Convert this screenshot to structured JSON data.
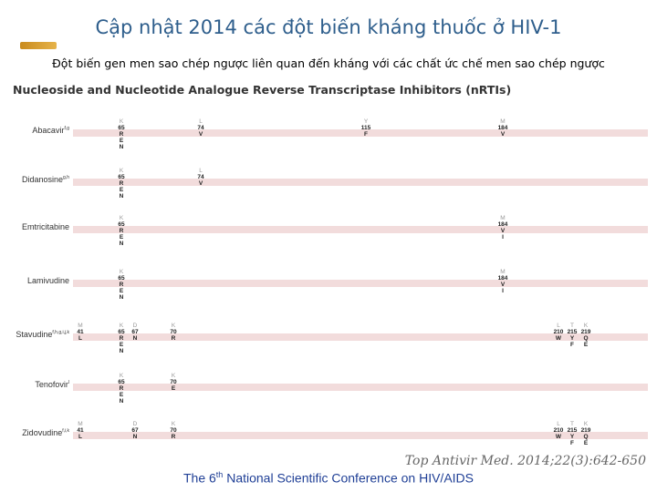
{
  "title": "Cập nhật 2014 các đột biến kháng thuốc ở HIV-1",
  "subtitle": "Đột biến gen men sao chép ngược liên quan đến kháng với các chất ức chế men sao chép ngược",
  "class_header": "Nucleoside and Nucleotide Analogue Reverse Transcriptase Inhibitors (nRTIs)",
  "citation": "Top Antivir Med. 2014;22(3):642-650",
  "footer": {
    "pre": "The 6",
    "sup": "th",
    "post": " National Scientific Conference on HIV/AIDS"
  },
  "colors": {
    "title": "#2e5e8c",
    "bar": "#f2dcdc",
    "footer": "#1f3f96"
  },
  "drugs": [
    {
      "name": "Abacavir",
      "sup": "f,g",
      "mutations": [
        {
          "wt": "K",
          "pos": "65",
          "alt": [
            "R",
            "E",
            "N"
          ]
        },
        {
          "wt": "L",
          "pos": "74",
          "alt": [
            "V"
          ]
        },
        {
          "wt": "Y",
          "pos": "115",
          "alt": [
            "F"
          ]
        },
        {
          "wt": "M",
          "pos": "184",
          "alt": [
            "V"
          ]
        }
      ]
    },
    {
      "name": "Didanosine",
      "sup": "g,h",
      "mutations": [
        {
          "wt": "K",
          "pos": "65",
          "alt": [
            "R",
            "E",
            "N"
          ]
        },
        {
          "wt": "L",
          "pos": "74",
          "alt": [
            "V"
          ]
        }
      ]
    },
    {
      "name": "Emtricitabine",
      "sup": "",
      "mutations": [
        {
          "wt": "K",
          "pos": "65",
          "alt": [
            "R",
            "E",
            "N"
          ]
        },
        {
          "wt": "M",
          "pos": "184",
          "alt": [
            "V",
            "I"
          ]
        }
      ]
    },
    {
      "name": "Lamivudine",
      "sup": "",
      "mutations": [
        {
          "wt": "K",
          "pos": "65",
          "alt": [
            "R",
            "E",
            "N"
          ]
        },
        {
          "wt": "M",
          "pos": "184",
          "alt": [
            "V",
            "I"
          ]
        }
      ]
    },
    {
      "name": "Stavudine",
      "sup": "f,h,g,i,j,k",
      "mutations": [
        {
          "wt": "M",
          "pos": "41",
          "alt": [
            "L"
          ]
        },
        {
          "wt": "K",
          "pos": "65",
          "alt": [
            "R",
            "E",
            "N"
          ]
        },
        {
          "wt": "D",
          "pos": "67",
          "alt": [
            "N"
          ]
        },
        {
          "wt": "K",
          "pos": "70",
          "alt": [
            "R"
          ]
        },
        {
          "wt": "L",
          "pos": "210",
          "alt": [
            "W"
          ]
        },
        {
          "wt": "T",
          "pos": "215",
          "alt": [
            "Y",
            "F"
          ]
        },
        {
          "wt": "K",
          "pos": "219",
          "alt": [
            "Q",
            "E"
          ]
        }
      ]
    },
    {
      "name": "Tenofovir",
      "sup": "l",
      "mutations": [
        {
          "wt": "K",
          "pos": "65",
          "alt": [
            "R",
            "E",
            "N"
          ]
        },
        {
          "wt": "K",
          "pos": "70",
          "alt": [
            "E"
          ]
        }
      ]
    },
    {
      "name": "Zidovudine",
      "sup": "f,i,k",
      "mutations": [
        {
          "wt": "M",
          "pos": "41",
          "alt": [
            "L"
          ]
        },
        {
          "wt": "D",
          "pos": "67",
          "alt": [
            "N"
          ]
        },
        {
          "wt": "K",
          "pos": "70",
          "alt": [
            "R"
          ]
        },
        {
          "wt": "L",
          "pos": "210",
          "alt": [
            "W"
          ]
        },
        {
          "wt": "T",
          "pos": "215",
          "alt": [
            "Y",
            "F"
          ]
        },
        {
          "wt": "K",
          "pos": "219",
          "alt": [
            "Q",
            "E"
          ]
        }
      ]
    }
  ]
}
